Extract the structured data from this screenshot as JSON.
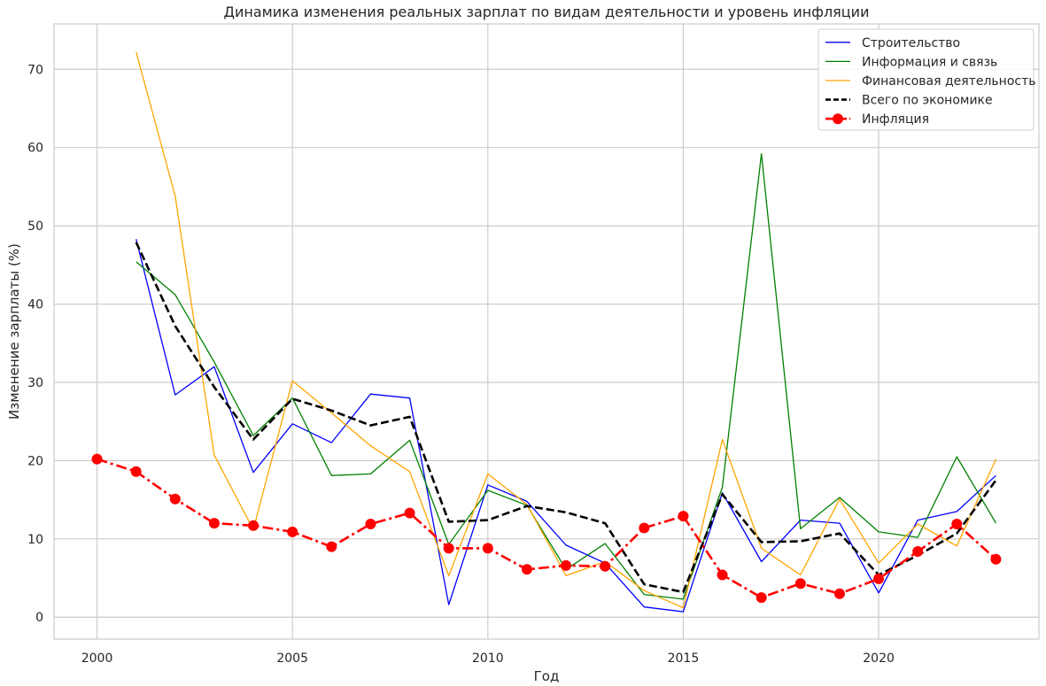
{
  "chart_data": {
    "type": "line",
    "title": "Динамика изменения реальных зарплат по видам деятельности и уровень инфляции",
    "xlabel": "Год",
    "ylabel": "Изменение зарплаты (%)",
    "xlim": [
      1998.9,
      2024.1
    ],
    "ylim": [
      -2.8,
      75.8
    ],
    "xticks": [
      2000,
      2005,
      2010,
      2015,
      2020
    ],
    "yticks": [
      0,
      10,
      20,
      30,
      40,
      50,
      60,
      70
    ],
    "grid": true,
    "legend_position": "top-right",
    "series": [
      {
        "name": "Строительство",
        "color": "#0000ff",
        "style": "solid",
        "width": 1.3,
        "marker": false,
        "x": [
          2001,
          2002,
          2003,
          2004,
          2005,
          2006,
          2007,
          2008,
          2009,
          2010,
          2011,
          2012,
          2013,
          2014,
          2015,
          2016,
          2017,
          2018,
          2019,
          2020,
          2021,
          2022,
          2023
        ],
        "y": [
          48.3,
          28.4,
          32.0,
          18.5,
          24.7,
          22.3,
          28.5,
          28.0,
          1.6,
          16.9,
          14.8,
          9.2,
          6.9,
          1.3,
          0.7,
          15.9,
          7.1,
          12.4,
          12.0,
          3.1,
          12.4,
          13.5,
          18.1
        ]
      },
      {
        "name": "Информация и связь",
        "color": "#008000",
        "style": "solid",
        "width": 1.3,
        "marker": false,
        "x": [
          2001,
          2002,
          2003,
          2004,
          2005,
          2006,
          2007,
          2008,
          2009,
          2010,
          2011,
          2012,
          2013,
          2014,
          2015,
          2016,
          2017,
          2018,
          2019,
          2020,
          2021,
          2022,
          2023
        ],
        "y": [
          45.4,
          41.2,
          32.6,
          23.2,
          28.0,
          18.1,
          18.3,
          22.6,
          9.3,
          16.2,
          14.3,
          6.1,
          9.4,
          2.9,
          2.3,
          16.6,
          59.2,
          11.3,
          15.3,
          10.9,
          10.2,
          20.5,
          12.0
        ]
      },
      {
        "name": "Финансовая деятельность",
        "color": "#ffa500",
        "style": "solid",
        "width": 1.3,
        "marker": false,
        "x": [
          2001,
          2002,
          2003,
          2004,
          2005,
          2006,
          2007,
          2008,
          2009,
          2010,
          2011,
          2012,
          2013,
          2014,
          2015,
          2016,
          2017,
          2018,
          2019,
          2020,
          2021,
          2022,
          2023
        ],
        "y": [
          72.2,
          53.8,
          20.7,
          11.2,
          30.2,
          26.1,
          21.9,
          18.6,
          5.3,
          18.3,
          14.4,
          5.3,
          7.1,
          3.4,
          1.2,
          22.7,
          8.8,
          5.4,
          15.1,
          6.9,
          11.9,
          9.1,
          20.2
        ]
      },
      {
        "name": "Всего по экономике",
        "color": "#000000",
        "style": "dashed",
        "width": 2.6,
        "marker": false,
        "x": [
          2001,
          2002,
          2003,
          2004,
          2005,
          2006,
          2007,
          2008,
          2009,
          2010,
          2011,
          2012,
          2013,
          2014,
          2015,
          2016,
          2017,
          2018,
          2019,
          2020,
          2021,
          2022,
          2023
        ],
        "y": [
          47.9,
          37.2,
          29.4,
          22.7,
          27.9,
          26.4,
          24.5,
          25.6,
          12.2,
          12.4,
          14.2,
          13.4,
          12.0,
          4.2,
          3.2,
          15.7,
          9.6,
          9.7,
          10.7,
          5.4,
          7.9,
          10.7,
          17.5
        ]
      },
      {
        "name": "Инфляция",
        "color": "#ff0000",
        "style": "dashdot",
        "width": 2.6,
        "marker": true,
        "x": [
          2000,
          2001,
          2002,
          2003,
          2004,
          2005,
          2006,
          2007,
          2008,
          2009,
          2010,
          2011,
          2012,
          2013,
          2014,
          2015,
          2016,
          2017,
          2018,
          2019,
          2020,
          2021,
          2022,
          2023
        ],
        "y": [
          20.2,
          18.6,
          15.1,
          12.0,
          11.7,
          10.9,
          9.0,
          11.9,
          13.3,
          8.8,
          8.8,
          6.1,
          6.6,
          6.5,
          11.4,
          12.9,
          5.4,
          2.5,
          4.3,
          3.0,
          4.9,
          8.4,
          11.9,
          7.4
        ]
      }
    ]
  }
}
